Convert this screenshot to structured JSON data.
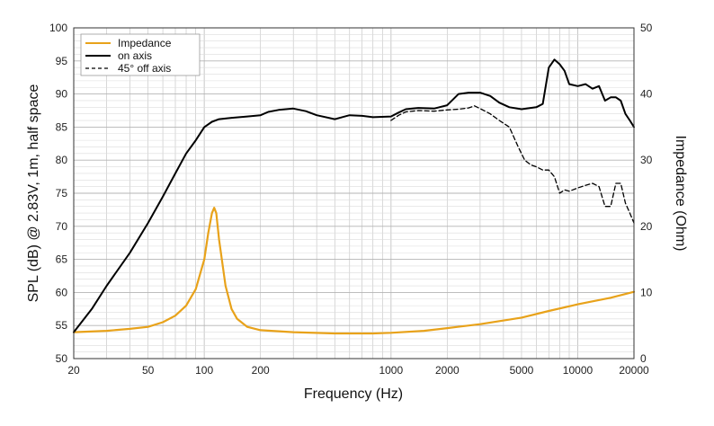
{
  "chart_data": {
    "type": "line",
    "xlabel": "Frequency (Hz)",
    "ylabel_left": "SPL (dB) @ 2.83V, 1m, half space",
    "ylabel_right": "Impedance (Ohm)",
    "x_scale": "log",
    "xlim": [
      20,
      20000
    ],
    "ylim_left": [
      50,
      100
    ],
    "ylim_right": [
      0,
      50
    ],
    "x_ticks": [
      20,
      50,
      100,
      200,
      1000,
      2000,
      5000,
      10000,
      20000
    ],
    "x_tick_labels": [
      "20",
      "50",
      "100",
      "200",
      "1000",
      "2000",
      "5000",
      "10000",
      "20000"
    ],
    "y_left_ticks": [
      50,
      55,
      60,
      65,
      70,
      75,
      80,
      85,
      90,
      95,
      100
    ],
    "y_left_tick_labels": [
      "50",
      "55",
      "60",
      "65",
      "70",
      "75",
      "80",
      "85",
      "90",
      "95",
      "100"
    ],
    "y_right_ticks": [
      0,
      10,
      20,
      30,
      40,
      50
    ],
    "y_right_tick_labels": [
      "0",
      "10",
      "20",
      "30",
      "40",
      "50"
    ],
    "legend": [
      {
        "label": "Impedance",
        "color": "#E8A21A",
        "style": "solid"
      },
      {
        "label": "on axis",
        "color": "#000000",
        "style": "solid"
      },
      {
        "label": "45° off axis",
        "color": "#000000",
        "style": "dashed"
      }
    ],
    "legend_position": "top-left",
    "grid": true,
    "series": [
      {
        "name": "Impedance",
        "axis": "right",
        "color": "#E8A21A",
        "style": "solid",
        "x": [
          20,
          30,
          40,
          50,
          60,
          70,
          80,
          90,
          100,
          105,
          110,
          113,
          116,
          120,
          130,
          140,
          150,
          170,
          200,
          300,
          500,
          800,
          1000,
          1500,
          2000,
          3000,
          5000,
          7000,
          10000,
          15000,
          20000
        ],
        "y": [
          4.0,
          4.2,
          4.5,
          4.8,
          5.5,
          6.5,
          8.0,
          10.5,
          15.0,
          19.0,
          22.0,
          22.8,
          22.0,
          18.0,
          11.0,
          7.5,
          6.0,
          4.8,
          4.3,
          4.0,
          3.8,
          3.8,
          3.9,
          4.2,
          4.6,
          5.2,
          6.2,
          7.2,
          8.2,
          9.2,
          10.1
        ]
      },
      {
        "name": "on axis",
        "axis": "left",
        "color": "#000000",
        "style": "solid",
        "x": [
          20,
          25,
          30,
          40,
          50,
          60,
          70,
          80,
          90,
          100,
          110,
          120,
          140,
          170,
          200,
          220,
          250,
          300,
          350,
          400,
          500,
          600,
          700,
          800,
          1000,
          1100,
          1200,
          1400,
          1700,
          2000,
          2300,
          2600,
          3000,
          3400,
          3800,
          4300,
          5000,
          6000,
          6500,
          7000,
          7500,
          8000,
          8500,
          9000,
          10000,
          11000,
          12000,
          13000,
          14000,
          15000,
          16000,
          17000,
          18000,
          19000,
          20000
        ],
        "y": [
          54.0,
          57.5,
          61.0,
          66.0,
          70.5,
          74.5,
          78.0,
          81.0,
          83.0,
          85.0,
          85.8,
          86.2,
          86.4,
          86.6,
          86.8,
          87.3,
          87.6,
          87.8,
          87.4,
          86.8,
          86.2,
          86.8,
          86.7,
          86.5,
          86.6,
          87.2,
          87.7,
          87.9,
          87.8,
          88.3,
          90.0,
          90.2,
          90.2,
          89.7,
          88.7,
          88.0,
          87.7,
          88.0,
          88.5,
          94.0,
          95.2,
          94.5,
          93.5,
          91.5,
          91.2,
          91.5,
          90.8,
          91.2,
          89.0,
          89.5,
          89.5,
          89.0,
          87.0,
          86.0,
          85.0
        ]
      },
      {
        "name": "45° off axis",
        "axis": "left",
        "color": "#000000",
        "style": "dashed",
        "x": [
          1000,
          1100,
          1200,
          1400,
          1700,
          2000,
          2300,
          2600,
          2800,
          3000,
          3400,
          3800,
          4300,
          4800,
          5200,
          5600,
          6000,
          6500,
          7000,
          7500,
          8000,
          8500,
          9000,
          10000,
          11000,
          12000,
          13000,
          14000,
          15000,
          16000,
          17000,
          18000,
          19000,
          20000
        ],
        "y": [
          86.0,
          86.8,
          87.3,
          87.5,
          87.4,
          87.6,
          87.7,
          87.9,
          88.2,
          87.8,
          87.0,
          86.0,
          85.0,
          82.0,
          80.0,
          79.3,
          79.0,
          78.5,
          78.5,
          77.5,
          75.0,
          75.5,
          75.3,
          75.8,
          76.2,
          76.5,
          76.0,
          73.0,
          73.0,
          76.5,
          76.5,
          73.5,
          72.0,
          70.5
        ]
      }
    ]
  }
}
